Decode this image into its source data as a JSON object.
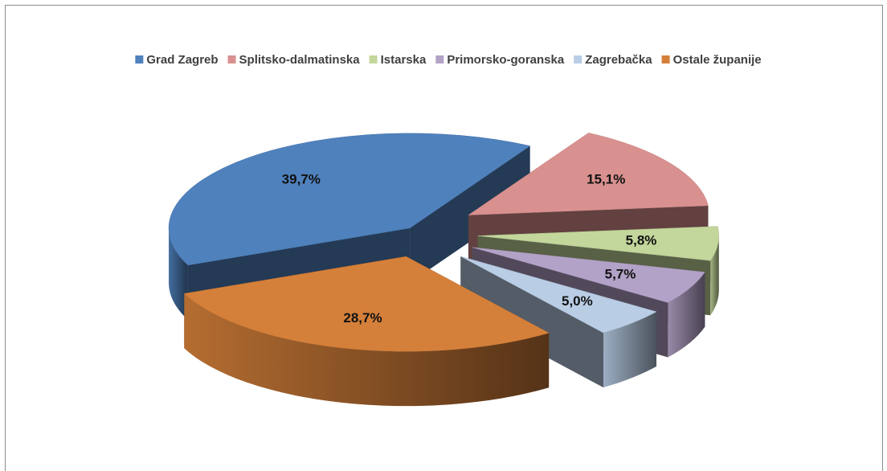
{
  "chart_data": {
    "type": "pie3d",
    "categories": [
      "Grad Zagreb",
      "Splitsko-dalmatinska",
      "Istarska",
      "Primorsko-goranska",
      "Zagrebačka",
      "Ostale županije"
    ],
    "values": [
      39.7,
      15.1,
      5.8,
      5.7,
      5.0,
      28.7
    ],
    "value_labels": [
      "39,7%",
      "15,1%",
      "5,8%",
      "5,7%",
      "5,0%",
      "28,7%"
    ],
    "colors": [
      "#4f81bd",
      "#d9918f",
      "#c3d69b",
      "#b3a2c7",
      "#b9cde5",
      "#d5803a"
    ],
    "legend": "top"
  }
}
